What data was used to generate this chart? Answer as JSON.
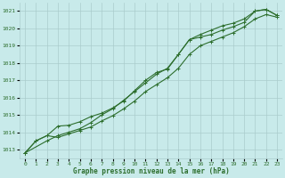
{
  "title": "Graphe pression niveau de la mer (hPa)",
  "bg_color": "#c8eaea",
  "grid_color": "#aacccc",
  "line_color": "#2d6e2d",
  "xlim": [
    -0.5,
    23.5
  ],
  "ylim": [
    1012.5,
    1021.5
  ],
  "yticks": [
    1013,
    1014,
    1015,
    1016,
    1017,
    1018,
    1019,
    1020,
    1021
  ],
  "xticks": [
    0,
    1,
    2,
    3,
    4,
    5,
    6,
    7,
    8,
    9,
    10,
    11,
    12,
    13,
    14,
    15,
    16,
    17,
    18,
    19,
    20,
    21,
    22,
    23
  ],
  "line1_x": [
    0,
    1,
    2,
    3,
    4,
    5,
    6,
    7,
    8,
    9,
    10,
    11,
    12,
    13,
    14,
    15,
    16,
    17,
    18,
    19,
    20,
    21,
    22,
    23
  ],
  "line1_y": [
    1012.8,
    1013.5,
    1013.8,
    1013.7,
    1013.9,
    1014.1,
    1014.3,
    1014.65,
    1014.95,
    1015.35,
    1015.8,
    1016.35,
    1016.75,
    1017.15,
    1017.7,
    1018.5,
    1019.0,
    1019.25,
    1019.5,
    1019.75,
    1020.1,
    1020.55,
    1020.8,
    1020.65
  ],
  "line2_x": [
    0,
    1,
    2,
    3,
    4,
    5,
    6,
    7,
    8,
    9,
    10,
    11,
    12,
    13,
    14,
    15,
    16,
    17,
    18,
    19,
    20,
    21,
    22,
    23
  ],
  "line2_y": [
    1012.8,
    1013.5,
    1013.8,
    1014.35,
    1014.4,
    1014.6,
    1014.9,
    1015.1,
    1015.4,
    1015.8,
    1016.4,
    1017.0,
    1017.45,
    1017.65,
    1018.5,
    1019.35,
    1019.5,
    1019.65,
    1019.9,
    1020.1,
    1020.35,
    1021.0,
    1021.1,
    1020.75
  ],
  "line3_x": [
    0,
    2,
    3,
    4,
    5,
    6,
    7,
    8,
    9,
    10,
    11,
    12,
    13,
    14,
    15,
    16,
    17,
    18,
    19,
    20,
    21,
    22,
    23
  ],
  "line3_y": [
    1012.8,
    1013.5,
    1013.8,
    1014.0,
    1014.2,
    1014.55,
    1015.0,
    1015.35,
    1015.85,
    1016.35,
    1016.85,
    1017.35,
    1017.7,
    1018.5,
    1019.35,
    1019.65,
    1019.9,
    1020.15,
    1020.3,
    1020.55,
    1021.0,
    1021.1,
    1020.75
  ]
}
